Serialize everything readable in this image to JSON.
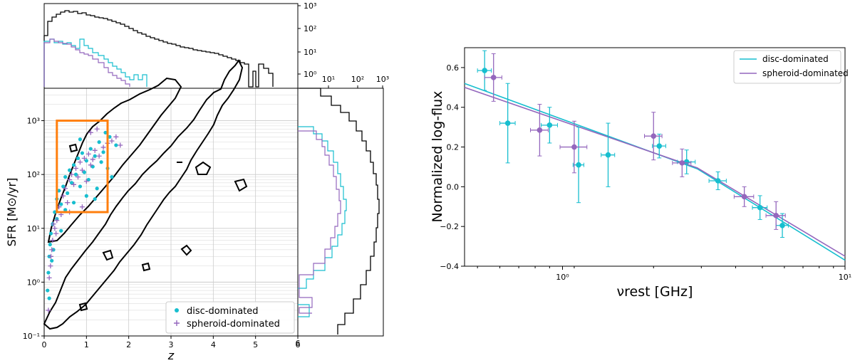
{
  "colors": {
    "disc": "#17becf",
    "spheroid": "#9467bd",
    "contour": "#000000",
    "selection_box": "#ff7f0e",
    "grid": "#cccccc"
  },
  "chart_data": [
    {
      "id": "sfr-vs-z",
      "type": "scatter",
      "xlabel": "z",
      "ylabel": "SFR [M⊙/yr]",
      "xlim": [
        0,
        6
      ],
      "ylim_log": [
        0.1,
        4000
      ],
      "yscale": "log",
      "x_ticks": [
        "0",
        "1",
        "2",
        "3",
        "4",
        "5",
        "6"
      ],
      "y_ticks": [
        "10⁻¹",
        "10⁰",
        "10¹",
        "10²",
        "10³"
      ],
      "grid": true,
      "legend_position": "lower-right",
      "series": [
        {
          "name": "disc-dominated",
          "marker": "circle",
          "color_key": "disc",
          "points": [
            [
              0.08,
              0.7
            ],
            [
              0.1,
              1.5
            ],
            [
              0.12,
              3
            ],
            [
              0.14,
              5
            ],
            [
              0.16,
              8
            ],
            [
              0.2,
              12
            ],
            [
              0.25,
              20
            ],
            [
              0.3,
              35
            ],
            [
              0.35,
              50
            ],
            [
              0.4,
              28
            ],
            [
              0.45,
              60
            ],
            [
              0.5,
              90
            ],
            [
              0.55,
              45
            ],
            [
              0.6,
              120
            ],
            [
              0.65,
              70
            ],
            [
              0.7,
              150
            ],
            [
              0.75,
              100
            ],
            [
              0.8,
              200
            ],
            [
              0.85,
              60
            ],
            [
              0.9,
              250
            ],
            [
              0.95,
              110
            ],
            [
              1.0,
              180
            ],
            [
              1.05,
              80
            ],
            [
              1.1,
              300
            ],
            [
              1.15,
              140
            ],
            [
              1.2,
              220
            ],
            [
              1.25,
              55
            ],
            [
              1.3,
              400
            ],
            [
              1.35,
              170
            ],
            [
              1.4,
              260
            ],
            [
              1.5,
              130
            ],
            [
              1.55,
              500
            ],
            [
              1.6,
              90
            ],
            [
              1.7,
              350
            ],
            [
              0.22,
              4
            ],
            [
              0.18,
              2.5
            ],
            [
              0.3,
              15
            ],
            [
              0.5,
              22
            ],
            [
              0.7,
              30
            ],
            [
              1.0,
              40
            ],
            [
              1.2,
              35
            ],
            [
              0.12,
              0.5
            ],
            [
              0.4,
              9
            ],
            [
              0.85,
              450
            ],
            [
              1.45,
              600
            ]
          ]
        },
        {
          "name": "spheroid-dominated",
          "marker": "plus",
          "color_key": "spheroid",
          "points": [
            [
              0.1,
              0.3
            ],
            [
              0.12,
              1.2
            ],
            [
              0.15,
              2
            ],
            [
              0.18,
              4
            ],
            [
              0.2,
              6
            ],
            [
              0.25,
              10
            ],
            [
              0.3,
              14
            ],
            [
              0.35,
              25
            ],
            [
              0.4,
              18
            ],
            [
              0.45,
              40
            ],
            [
              0.5,
              55
            ],
            [
              0.55,
              30
            ],
            [
              0.6,
              80
            ],
            [
              0.65,
              100
            ],
            [
              0.7,
              65
            ],
            [
              0.75,
              130
            ],
            [
              0.8,
              90
            ],
            [
              0.85,
              170
            ],
            [
              0.9,
              120
            ],
            [
              0.95,
              200
            ],
            [
              1.0,
              75
            ],
            [
              1.05,
              240
            ],
            [
              1.1,
              150
            ],
            [
              1.15,
              190
            ],
            [
              1.2,
              280
            ],
            [
              1.3,
              220
            ],
            [
              1.4,
              320
            ],
            [
              1.5,
              380
            ],
            [
              1.6,
              420
            ],
            [
              1.7,
              500
            ],
            [
              1.8,
              350
            ],
            [
              0.28,
              8
            ],
            [
              0.6,
              20
            ],
            [
              0.9,
              25
            ],
            [
              1.1,
              600
            ],
            [
              0.16,
              3
            ],
            [
              0.22,
              12
            ],
            [
              1.25,
              700
            ]
          ]
        }
      ],
      "selection_box": {
        "z_min": 0.3,
        "z_max": 1.5,
        "sfr_min": 20,
        "sfr_max": 1000
      },
      "top_histogram": {
        "yscale": "log",
        "y_ticks": [
          "10⁰",
          "10¹",
          "10²",
          "10³"
        ],
        "series": [
          {
            "name": "all",
            "color_key": "contour"
          },
          {
            "name": "disc-dominated",
            "color_key": "disc"
          },
          {
            "name": "spheroid-dominated",
            "color_key": "spheroid"
          }
        ]
      },
      "right_histogram": {
        "xscale": "log",
        "x_ticks": [
          "10¹",
          "10²",
          "10³"
        ]
      }
    },
    {
      "id": "log-flux-vs-freq",
      "type": "line",
      "xlabel": "νrest [GHz]",
      "ylabel": "Normalized log-flux",
      "xscale": "log",
      "xlim": [
        0.45,
        10
      ],
      "ylim": [
        -0.4,
        0.7
      ],
      "x_ticks": [
        "10⁰",
        "10¹"
      ],
      "y_ticks": [
        "−0.4",
        "−0.2",
        "0.0",
        "0.2",
        "0.4",
        "0.6"
      ],
      "legend_position": "top-right",
      "series": [
        {
          "name": "disc-dominated",
          "color_key": "disc",
          "fit": [
            [
              0.45,
              0.52
            ],
            [
              3.0,
              0.09
            ],
            [
              10,
              -0.37
            ]
          ],
          "points": [
            {
              "nu": 0.53,
              "y": 0.585,
              "xerr": 0.03,
              "yerr": 0.1
            },
            {
              "nu": 0.64,
              "y": 0.32,
              "xerr": 0.04,
              "yerr": 0.2
            },
            {
              "nu": 0.9,
              "y": 0.31,
              "xerr": 0.06,
              "yerr": 0.09
            },
            {
              "nu": 1.14,
              "y": 0.11,
              "xerr": 0.05,
              "yerr": 0.19
            },
            {
              "nu": 1.45,
              "y": 0.16,
              "xerr": 0.08,
              "yerr": 0.16
            },
            {
              "nu": 2.2,
              "y": 0.205,
              "xerr": 0.12,
              "yerr": 0.06
            },
            {
              "nu": 2.75,
              "y": 0.125,
              "xerr": 0.2,
              "yerr": 0.06
            },
            {
              "nu": 3.55,
              "y": 0.03,
              "xerr": 0.25,
              "yerr": 0.045
            },
            {
              "nu": 5.0,
              "y": -0.105,
              "xerr": 0.3,
              "yerr": 0.06
            },
            {
              "nu": 6.0,
              "y": -0.195,
              "xerr": 0.3,
              "yerr": 0.06
            }
          ]
        },
        {
          "name": "spheroid-dominated",
          "color_key": "spheroid",
          "fit": [
            [
              0.45,
              0.5
            ],
            [
              3.0,
              0.095
            ],
            [
              10,
              -0.35
            ]
          ],
          "points": [
            {
              "nu": 0.57,
              "y": 0.55,
              "xerr": 0.04,
              "yerr": 0.12
            },
            {
              "nu": 0.83,
              "y": 0.285,
              "xerr": 0.06,
              "yerr": 0.13
            },
            {
              "nu": 1.1,
              "y": 0.2,
              "xerr": 0.12,
              "yerr": 0.13
            },
            {
              "nu": 2.1,
              "y": 0.255,
              "xerr": 0.15,
              "yerr": 0.12
            },
            {
              "nu": 2.65,
              "y": 0.12,
              "xerr": 0.2,
              "yerr": 0.07
            },
            {
              "nu": 4.4,
              "y": -0.05,
              "xerr": 0.35,
              "yerr": 0.05
            },
            {
              "nu": 5.7,
              "y": -0.145,
              "xerr": 0.45,
              "yerr": 0.07
            }
          ]
        }
      ]
    }
  ]
}
